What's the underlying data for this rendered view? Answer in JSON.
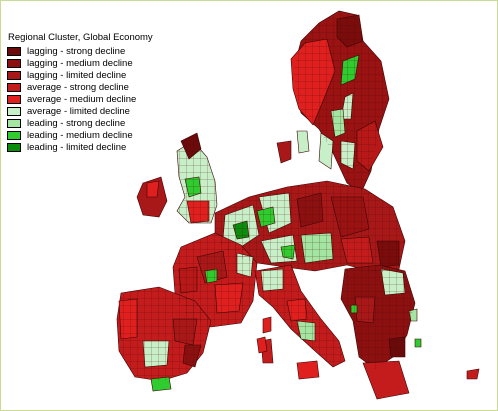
{
  "map": {
    "legend": {
      "title": "Regional Cluster, Global Economy",
      "items": [
        {
          "label": "lagging - strong decline",
          "color": "#6b0a0a"
        },
        {
          "label": "lagging - medium decline",
          "color": "#8c1010"
        },
        {
          "label": "lagging - limited decline",
          "color": "#a81818"
        },
        {
          "label": "average - strong decline",
          "color": "#c41c1c"
        },
        {
          "label": "average - medium decline",
          "color": "#e01f1f"
        },
        {
          "label": "average - limited decline",
          "color": "#c8f0c8"
        },
        {
          "label": "leading - strong decline",
          "color": "#a2e6a2"
        },
        {
          "label": "leading - medium decline",
          "color": "#2ecc2e"
        },
        {
          "label": "leading - limited decline",
          "color": "#0c8c0c"
        }
      ]
    }
  }
}
